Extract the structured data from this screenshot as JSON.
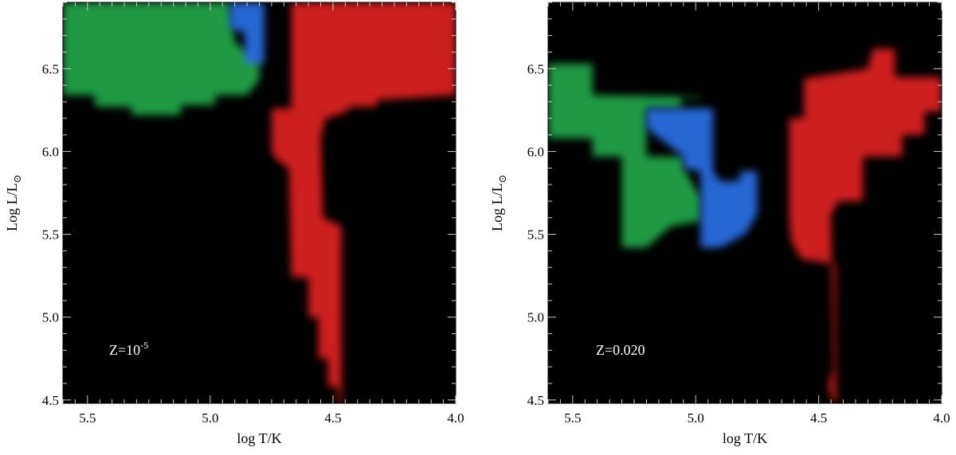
{
  "chart_data": [
    {
      "type": "heatmap",
      "annotation": "Z=10",
      "annotation_exp": "-5",
      "xlabel": "log T/K",
      "ylabel_main": "Log L/L",
      "ylabel_sub": "⊙",
      "xlim": [
        5.6,
        4.0
      ],
      "ylim": [
        4.48,
        6.9
      ],
      "xticks": [
        5.5,
        5.0,
        4.5,
        4.0
      ],
      "xtick_labels": [
        "5.5",
        "5.0",
        "4.5",
        "4.0"
      ],
      "yticks": [
        4.5,
        5.0,
        5.5,
        6.0,
        6.5
      ],
      "ytick_labels": [
        "4.5",
        "5.0",
        "5.5",
        "6.0",
        "6.5"
      ],
      "background": "#000000",
      "regions": [
        {
          "color": "#22a84a",
          "label": "green",
          "polygon": [
            [
              5.6,
              6.9
            ],
            [
              5.6,
              6.34
            ],
            [
              5.47,
              6.34
            ],
            [
              5.47,
              6.27
            ],
            [
              5.32,
              6.27
            ],
            [
              5.32,
              6.22
            ],
            [
              5.12,
              6.22
            ],
            [
              5.12,
              6.28
            ],
            [
              4.98,
              6.28
            ],
            [
              4.98,
              6.34
            ],
            [
              4.85,
              6.34
            ],
            [
              4.8,
              6.43
            ],
            [
              4.8,
              6.55
            ],
            [
              4.9,
              6.66
            ],
            [
              4.92,
              6.9
            ]
          ]
        },
        {
          "color": "#2a6fe6",
          "label": "blue",
          "polygon": [
            [
              4.92,
              6.9
            ],
            [
              4.92,
              6.74
            ],
            [
              4.86,
              6.72
            ],
            [
              4.86,
              6.53
            ],
            [
              4.78,
              6.53
            ],
            [
              4.78,
              6.9
            ]
          ]
        },
        {
          "color": "#e02020",
          "label": "red",
          "polygon": [
            [
              4.67,
              6.9
            ],
            [
              4.67,
              6.26
            ],
            [
              4.75,
              6.26
            ],
            [
              4.75,
              6.0
            ],
            [
              4.73,
              5.95
            ],
            [
              4.68,
              5.9
            ],
            [
              4.67,
              5.24
            ],
            [
              4.6,
              5.24
            ],
            [
              4.6,
              5.0
            ],
            [
              4.56,
              5.0
            ],
            [
              4.56,
              4.75
            ],
            [
              4.52,
              4.75
            ],
            [
              4.52,
              4.58
            ],
            [
              4.48,
              4.58
            ],
            [
              4.48,
              4.48
            ],
            [
              4.465,
              4.48
            ],
            [
              4.465,
              5.55
            ],
            [
              4.54,
              5.6
            ],
            [
              4.55,
              6.08
            ],
            [
              4.53,
              6.2
            ],
            [
              4.44,
              6.24
            ],
            [
              4.44,
              6.27
            ],
            [
              4.32,
              6.27
            ],
            [
              4.32,
              6.31
            ],
            [
              4.0,
              6.34
            ],
            [
              4.0,
              6.9
            ]
          ]
        }
      ]
    },
    {
      "type": "heatmap",
      "annotation": "Z=0.020",
      "annotation_exp": "",
      "xlabel": "log T/K",
      "ylabel_main": "Log L/L",
      "ylabel_sub": "⊙",
      "xlim": [
        5.6,
        4.0
      ],
      "ylim": [
        4.48,
        6.9
      ],
      "xticks": [
        5.5,
        5.0,
        4.5,
        4.0
      ],
      "xtick_labels": [
        "5.5",
        "5.0",
        "4.5",
        "4.0"
      ],
      "yticks": [
        4.5,
        5.0,
        5.5,
        6.0,
        6.5
      ],
      "ytick_labels": [
        "4.5",
        "5.0",
        "5.5",
        "6.0",
        "6.5"
      ],
      "background": "#000000",
      "regions": [
        {
          "color": "#22a84a",
          "label": "green",
          "polygon": [
            [
              5.6,
              6.53
            ],
            [
              5.6,
              6.08
            ],
            [
              5.42,
              6.08
            ],
            [
              5.42,
              5.97
            ],
            [
              5.3,
              5.97
            ],
            [
              5.3,
              5.42
            ],
            [
              5.2,
              5.42
            ],
            [
              5.1,
              5.55
            ],
            [
              4.98,
              5.58
            ],
            [
              4.98,
              5.72
            ],
            [
              5.05,
              5.9
            ],
            [
              5.05,
              5.97
            ],
            [
              5.2,
              5.97
            ],
            [
              5.2,
              6.26
            ],
            [
              5.06,
              6.26
            ],
            [
              5.06,
              6.32
            ],
            [
              4.98,
              6.32
            ],
            [
              4.98,
              6.33
            ],
            [
              5.42,
              6.34
            ],
            [
              5.42,
              6.53
            ]
          ]
        },
        {
          "color": "#2a6fe6",
          "label": "blue",
          "polygon": [
            [
              5.2,
              6.26
            ],
            [
              5.2,
              6.14
            ],
            [
              5.05,
              5.97
            ],
            [
              5.05,
              5.9
            ],
            [
              4.98,
              5.88
            ],
            [
              4.98,
              5.42
            ],
            [
              4.9,
              5.42
            ],
            [
              4.8,
              5.5
            ],
            [
              4.75,
              5.62
            ],
            [
              4.75,
              5.88
            ],
            [
              4.82,
              5.88
            ],
            [
              4.82,
              5.82
            ],
            [
              4.9,
              5.82
            ],
            [
              4.9,
              5.82
            ],
            [
              4.93,
              5.88
            ],
            [
              4.93,
              6.26
            ],
            [
              5.02,
              6.26
            ],
            [
              5.02,
              6.26
            ]
          ]
        },
        {
          "color": "#e02020",
          "label": "red",
          "polygon": [
            [
              4.62,
              6.2
            ],
            [
              4.56,
              6.2
            ],
            [
              4.56,
              6.44
            ],
            [
              4.3,
              6.5
            ],
            [
              4.28,
              6.62
            ],
            [
              4.19,
              6.62
            ],
            [
              4.19,
              6.45
            ],
            [
              4.0,
              6.45
            ],
            [
              4.0,
              6.24
            ],
            [
              4.07,
              6.24
            ],
            [
              4.07,
              6.1
            ],
            [
              4.16,
              6.1
            ],
            [
              4.16,
              5.97
            ],
            [
              4.32,
              5.97
            ],
            [
              4.32,
              5.7
            ],
            [
              4.42,
              5.7
            ],
            [
              4.45,
              5.62
            ],
            [
              4.44,
              4.7
            ],
            [
              4.46,
              4.58
            ],
            [
              4.44,
              4.48
            ],
            [
              4.43,
              4.48
            ],
            [
              4.43,
              5.32
            ],
            [
              4.57,
              5.35
            ],
            [
              4.61,
              5.45
            ],
            [
              4.62,
              5.6
            ]
          ]
        }
      ]
    }
  ]
}
